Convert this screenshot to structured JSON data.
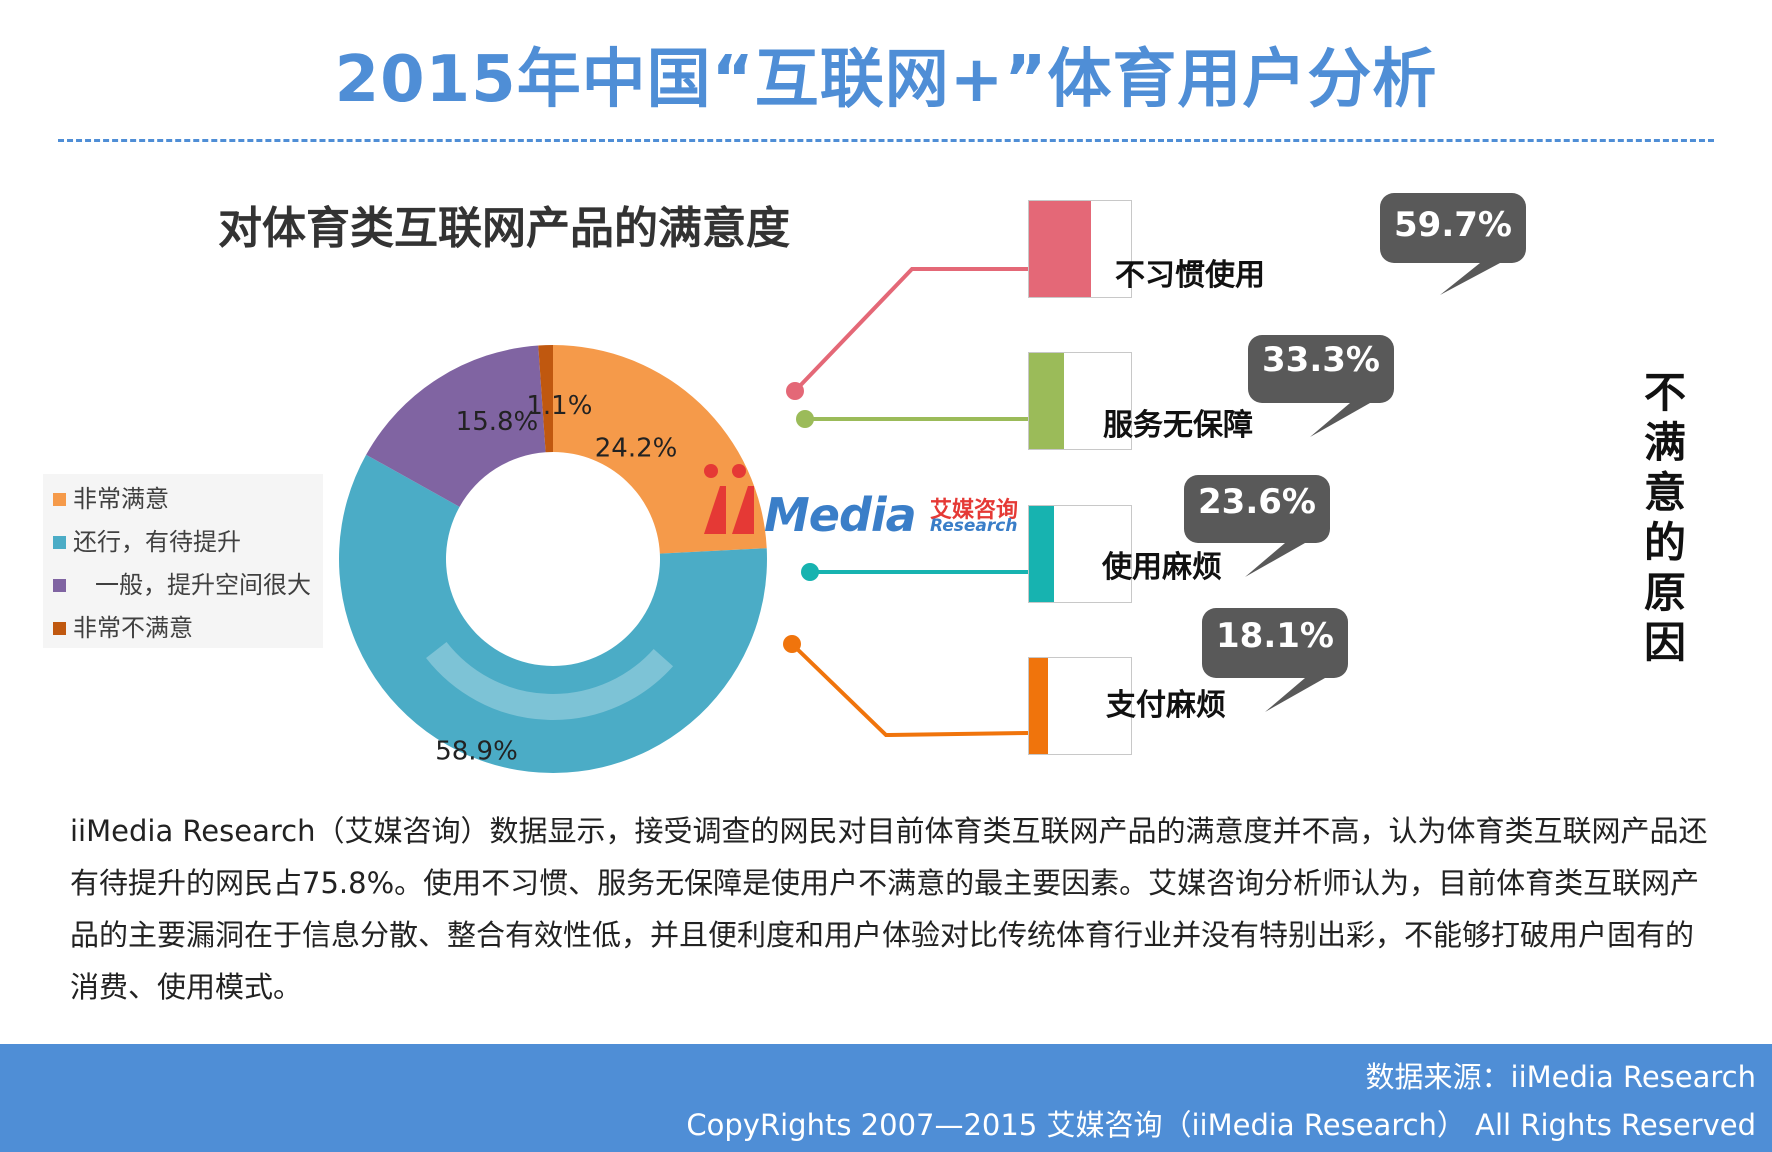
{
  "page": {
    "title": "2015年中国“互联网+”体育用户分析",
    "description": "iiMedia Research（艾媒咨询）数据显示，接受调查的网民对目前体育类互联网产品的满意度并不高，认为体育类互联网产品还有待提升的网民占75.8%。使用不习惯、服务无保障是使用户不满意的最主要因素。艾媒咨询分析师认为，目前体育类互联网产品的主要漏洞在于信息分散、整合有效性低，并且便利度和用户体验对比传统体育行业并没有特别出彩，不能够打破用户固有的消费、使用模式。",
    "side_label": "不满意的原因"
  },
  "logo": {
    "media_text": "Media",
    "cn_text": "艾媒咨询",
    "research_text": "Research"
  },
  "footer": {
    "source": "数据来源：iiMedia Research",
    "copyright": "CopyRights 2007—2015 艾媒咨询（iiMedia Research） All Rights Reserved"
  },
  "colors": {
    "title_blue": "#4F8ED6",
    "footer_blue": "#4F8ED6",
    "bubble_gray": "#595959"
  },
  "chart_data": [
    {
      "type": "pie",
      "variant": "donut",
      "title": "对体育类互联网产品的满意度",
      "legend_position": "left",
      "slices": [
        {
          "name": "非常满意",
          "value": 24.2,
          "label": "24.2%",
          "color": "#F59A4A"
        },
        {
          "name": "还行，有待提升",
          "value": 58.9,
          "label": "58.9%",
          "color": "#4BACC6"
        },
        {
          "name": "一般，提升空间很大",
          "value": 15.8,
          "label": "15.8%",
          "color": "#8064A2"
        },
        {
          "name": "非常不满意",
          "value": 1.1,
          "label": "1.1%",
          "color": "#C0580F"
        }
      ]
    },
    {
      "type": "bar",
      "orientation": "horizontal",
      "title": "不满意的原因",
      "categories": [
        "不习惯使用",
        "服务无保障",
        "使用麻烦",
        "支付麻烦"
      ],
      "values": [
        59.7,
        33.3,
        23.6,
        18.1
      ],
      "labels": [
        "59.7%",
        "33.3%",
        "23.6%",
        "18.1%"
      ],
      "colors": [
        "#E46877",
        "#9BBB59",
        "#17B3B0",
        "#F0740C"
      ]
    }
  ]
}
